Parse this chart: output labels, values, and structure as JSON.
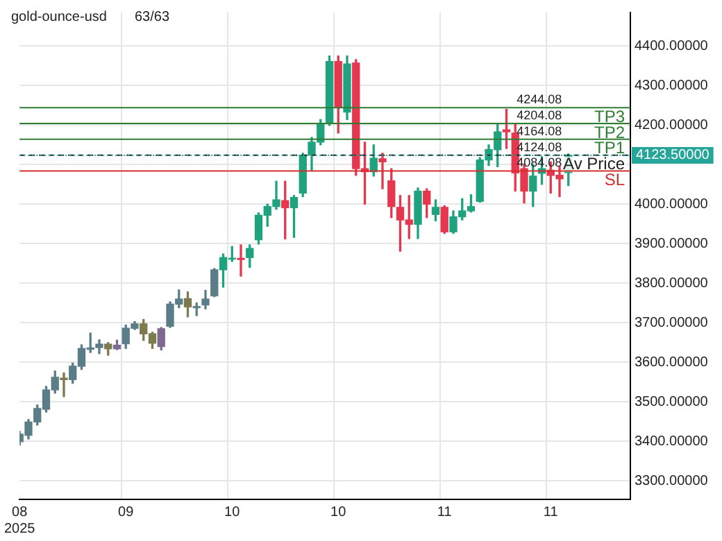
{
  "chart_data": {
    "type": "candlestick",
    "title": "gold-ounce-usd",
    "annotations": [
      "63/63",
      {
        "text": "4244.08",
        "y": 4244.08
      },
      {
        "text": "4204.08",
        "y": 4204.08
      },
      {
        "text": "4164.08",
        "y": 4164.08
      },
      {
        "text": "4124.08",
        "y": 4124.08
      },
      {
        "text": "4084.08",
        "y": 4084.08
      }
    ],
    "categories": [
      "08\n2025",
      null,
      null,
      null,
      null,
      null,
      null,
      null,
      null,
      null,
      null,
      null,
      "09",
      null,
      null,
      null,
      null,
      null,
      null,
      null,
      null,
      null,
      null,
      null,
      "10",
      null,
      null,
      null,
      null,
      null,
      null,
      null,
      null,
      null,
      null,
      null,
      "10",
      null,
      null,
      null,
      null,
      null,
      null,
      null,
      null,
      null,
      null,
      null,
      "11",
      null,
      null,
      null,
      null,
      null,
      null,
      null,
      null,
      null,
      null,
      null,
      "11",
      null,
      null,
      null,
      null,
      null,
      null,
      null,
      null,
      null
    ],
    "ohlc": [
      [
        3399,
        3425,
        3390,
        3418
      ],
      [
        3415,
        3455,
        3406,
        3449
      ],
      [
        3449,
        3492,
        3441,
        3483
      ],
      [
        3481,
        3539,
        3474,
        3530
      ],
      [
        3530,
        3578,
        3522,
        3562
      ],
      [
        3560,
        3573,
        3513,
        3556
      ],
      [
        3556,
        3598,
        3547,
        3590
      ],
      [
        3590,
        3644,
        3582,
        3635
      ],
      [
        3633,
        3674,
        3625,
        3636
      ],
      [
        3637,
        3657,
        3622,
        3646
      ],
      [
        3646,
        3650,
        3618,
        3634
      ],
      [
        3634,
        3656,
        3632,
        3643
      ],
      [
        3647,
        3694,
        3635,
        3686
      ],
      [
        3686,
        3703,
        3683,
        3697
      ],
      [
        3697,
        3708,
        3655,
        3672
      ],
      [
        3672,
        3676,
        3635,
        3648
      ],
      [
        3640,
        3688,
        3631,
        3685
      ],
      [
        3691,
        3753,
        3688,
        3747
      ],
      [
        3747,
        3783,
        3738,
        3760
      ],
      [
        3761,
        3778,
        3715,
        3740
      ],
      [
        3738,
        3750,
        3718,
        3741
      ],
      [
        3745,
        3782,
        3735,
        3760
      ],
      [
        3768,
        3837,
        3766,
        3834
      ],
      [
        3834,
        3874,
        3790,
        3865
      ],
      [
        3861,
        3893,
        3855,
        3863
      ],
      [
        3863,
        3897,
        3818,
        3860
      ],
      [
        3865,
        3897,
        3840,
        3888
      ],
      [
        3910,
        3978,
        3899,
        3972
      ],
      [
        3972,
        4000,
        3944,
        3994
      ],
      [
        3994,
        4058,
        3987,
        4011
      ],
      [
        4009,
        4058,
        3912,
        3991
      ],
      [
        3991,
        4022,
        3916,
        4017
      ],
      [
        4028,
        4129,
        4019,
        4124
      ],
      [
        4124,
        4169,
        4086,
        4157
      ],
      [
        4157,
        4214,
        4150,
        4203
      ],
      [
        4206,
        4375,
        4199,
        4361
      ],
      [
        4361,
        4375,
        4180,
        4244
      ],
      [
        4233,
        4375,
        4214,
        4355
      ],
      [
        4357,
        4366,
        4073,
        4090
      ],
      [
        4090,
        4157,
        4000,
        4082
      ],
      [
        4082,
        4150,
        4071,
        4116
      ],
      [
        4115,
        4129,
        4039,
        4107
      ],
      [
        4059,
        4090,
        3966,
        3994
      ],
      [
        3992,
        4022,
        3881,
        3960
      ],
      [
        3960,
        4022,
        3913,
        3949
      ],
      [
        3949,
        4041,
        3913,
        4033
      ],
      [
        4033,
        4039,
        3966,
        4000
      ],
      [
        3974,
        4011,
        3958,
        3992
      ],
      [
        3992,
        3996,
        3926,
        3930
      ],
      [
        3930,
        3983,
        3926,
        3968
      ],
      [
        3968,
        4014,
        3960,
        3983
      ],
      [
        3983,
        4024,
        3980,
        3994
      ],
      [
        4007,
        4118,
        4005,
        4112
      ],
      [
        4112,
        4150,
        4098,
        4138
      ],
      [
        4138,
        4203,
        4095,
        4183
      ],
      [
        4188,
        4240,
        4141,
        4183
      ],
      [
        4180,
        4203,
        4033,
        4079
      ],
      [
        4090,
        4101,
        4003,
        4033
      ],
      [
        4033,
        4101,
        3994,
        4071
      ],
      [
        4078,
        4120,
        4050,
        4090
      ],
      [
        4086,
        4107,
        4028,
        4073
      ],
      [
        4073,
        4095,
        4019,
        4064
      ],
      [
        4080,
        4127,
        4047,
        4123.5
      ],
      null,
      null,
      null,
      null,
      null,
      null,
      null
    ],
    "colors": [
      "#5b7d87",
      "#5b7d87",
      "#5b7d87",
      "#5b7d87",
      "#5b7d87",
      "#7d7a50",
      "#5b7d87",
      "#5b7d87",
      "#5b7d87",
      "#5b7d87",
      "#7d7a50",
      "#7d6a90",
      "#5b7d87",
      "#5b7d87",
      "#7d7a50",
      "#7d7a50",
      "#7d6a90",
      "#5b7d87",
      "#5b7d87",
      "#7d7a50",
      "#5b7d87",
      "#5b7d87",
      "#5b7d87",
      "#1fa37f",
      "#1fa37f",
      "#e5384f",
      "#1fa37f",
      "#1fa37f",
      "#1fa37f",
      "#1fa37f",
      "#e5384f",
      "#1fa37f",
      "#1fa37f",
      "#1fa37f",
      "#1fa37f",
      "#1fa37f",
      "#e5384f",
      "#1fa37f",
      "#e5384f",
      "#e5384f",
      "#1fa37f",
      "#e5384f",
      "#e5384f",
      "#e5384f",
      "#e5384f",
      "#1fa37f",
      "#e5384f",
      "#1fa37f",
      "#e5384f",
      "#1fa37f",
      "#1fa37f",
      "#1fa37f",
      "#1fa37f",
      "#1fa37f",
      "#1fa37f",
      "#e5384f",
      "#e5384f",
      "#e5384f",
      "#1fa37f",
      "#1fa37f",
      "#e5384f",
      "#e5384f",
      "#1fa37f",
      null,
      null,
      null,
      null,
      null,
      null,
      null
    ],
    "ylim": [
      3253,
      4485
    ],
    "yticks": [
      {
        "value": 3300,
        "label": "3300.00000"
      },
      {
        "value": 3400,
        "label": "3400.00000"
      },
      {
        "value": 3500,
        "label": "3500.00000"
      },
      {
        "value": 3600,
        "label": "3600.00000"
      },
      {
        "value": 3700,
        "label": "3700.00000"
      },
      {
        "value": 3800,
        "label": "3800.00000"
      },
      {
        "value": 3900,
        "label": "3900.00000"
      },
      {
        "value": 4000,
        "label": "4000.00000"
      },
      {
        "value": 4100,
        "label": null
      },
      {
        "value": 4200,
        "label": "4200.00000"
      },
      {
        "value": 4300,
        "label": "4300.00000"
      },
      {
        "value": 4400,
        "label": "4400.00000"
      }
    ],
    "ref_lines": [
      {
        "axis": "y",
        "value": 4244.08,
        "label": "TP3",
        "color": "#2e7d32",
        "line_style": "solid"
      },
      {
        "axis": "y",
        "value": 4204.08,
        "label": "TP2",
        "color": "#2e7d32",
        "line_style": "solid"
      },
      {
        "axis": "y",
        "value": 4164.08,
        "label": "TP1",
        "color": "#2e7d32",
        "line_style": "solid"
      },
      {
        "axis": "y",
        "value": 4124.08,
        "label": "Av Price",
        "color": "#222222",
        "line_style": "dashed"
      },
      {
        "axis": "y",
        "value": 4084.08,
        "label": "SL",
        "color": "#d32f2f",
        "line_style": "solid"
      },
      {
        "axis": "y",
        "value": 4123.5,
        "label": "4123.50000",
        "color": "#26a69a",
        "line_style": "dotted"
      }
    ],
    "grid": true,
    "legend": false
  }
}
